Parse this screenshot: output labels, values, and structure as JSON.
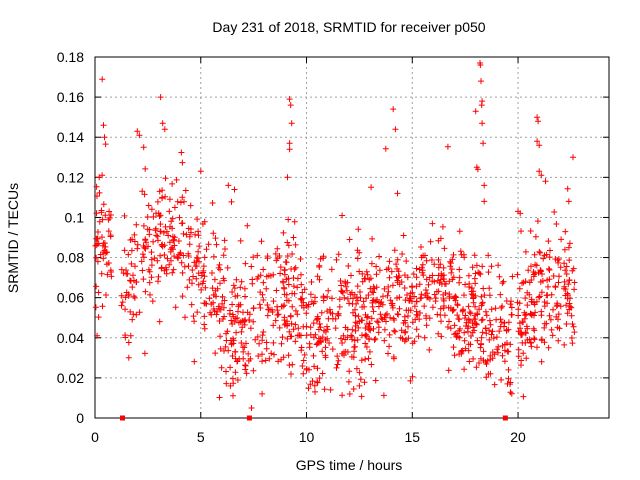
{
  "chart_data": {
    "type": "scatter",
    "title": "Day 231 of 2018, SRMTID for receiver p050",
    "xlabel": "GPS time / hours",
    "ylabel": "SRMTID / TECUs",
    "xlim": [
      0,
      24.3
    ],
    "ylim": [
      0,
      0.18
    ],
    "grid": true,
    "marker": "+",
    "color": "#ff0000",
    "x_ticks": [
      0,
      5,
      10,
      15,
      20
    ],
    "x_tick_labels": [
      "0",
      "5",
      "10",
      "15",
      "20"
    ],
    "y_ticks": [
      0,
      0.02,
      0.04,
      0.06,
      0.08,
      0.1,
      0.12,
      0.14,
      0.16,
      0.18
    ],
    "y_tick_labels": [
      "0",
      "0.02",
      "0.04",
      "0.06",
      "0.08",
      "0.1",
      "0.12",
      "0.14",
      "0.16",
      "0.18"
    ],
    "gap_markers_x": [
      1.3,
      7.3,
      19.4
    ],
    "trend": [
      {
        "x": 0.0,
        "y": 0.08
      },
      {
        "x": 0.3,
        "y": 0.095
      },
      {
        "x": 0.6,
        "y": 0.085
      },
      {
        "x": 1.4,
        "y": 0.06
      },
      {
        "x": 2.0,
        "y": 0.075
      },
      {
        "x": 2.5,
        "y": 0.085
      },
      {
        "x": 3.0,
        "y": 0.09
      },
      {
        "x": 3.5,
        "y": 0.09
      },
      {
        "x": 4.0,
        "y": 0.085
      },
      {
        "x": 4.5,
        "y": 0.08
      },
      {
        "x": 5.0,
        "y": 0.07
      },
      {
        "x": 5.5,
        "y": 0.062
      },
      {
        "x": 6.0,
        "y": 0.052
      },
      {
        "x": 6.5,
        "y": 0.045
      },
      {
        "x": 7.0,
        "y": 0.042
      },
      {
        "x": 7.5,
        "y": 0.05
      },
      {
        "x": 8.0,
        "y": 0.048
      },
      {
        "x": 8.5,
        "y": 0.055
      },
      {
        "x": 9.0,
        "y": 0.06
      },
      {
        "x": 9.5,
        "y": 0.055
      },
      {
        "x": 10.0,
        "y": 0.045
      },
      {
        "x": 10.5,
        "y": 0.042
      },
      {
        "x": 11.0,
        "y": 0.045
      },
      {
        "x": 11.5,
        "y": 0.048
      },
      {
        "x": 12.0,
        "y": 0.046
      },
      {
        "x": 12.5,
        "y": 0.048
      },
      {
        "x": 13.0,
        "y": 0.052
      },
      {
        "x": 13.5,
        "y": 0.055
      },
      {
        "x": 14.0,
        "y": 0.058
      },
      {
        "x": 14.5,
        "y": 0.055
      },
      {
        "x": 15.0,
        "y": 0.052
      },
      {
        "x": 15.5,
        "y": 0.062
      },
      {
        "x": 16.0,
        "y": 0.066
      },
      {
        "x": 16.5,
        "y": 0.064
      },
      {
        "x": 17.0,
        "y": 0.058
      },
      {
        "x": 17.5,
        "y": 0.052
      },
      {
        "x": 18.0,
        "y": 0.05
      },
      {
        "x": 18.5,
        "y": 0.048
      },
      {
        "x": 19.0,
        "y": 0.045
      },
      {
        "x": 19.5,
        "y": 0.042
      },
      {
        "x": 20.0,
        "y": 0.05
      },
      {
        "x": 20.5,
        "y": 0.058
      },
      {
        "x": 21.0,
        "y": 0.062
      },
      {
        "x": 21.5,
        "y": 0.06
      },
      {
        "x": 22.0,
        "y": 0.062
      },
      {
        "x": 22.6,
        "y": 0.06
      }
    ],
    "gaps": [
      [
        0.85,
        1.25
      ],
      [
        19.75,
        19.95
      ]
    ],
    "notable_points": [
      {
        "x": 0.4,
        "y": 0.146
      },
      {
        "x": 0.45,
        "y": 0.14
      },
      {
        "x": 0.2,
        "y": 0.12
      },
      {
        "x": 0.1,
        "y": 0.041
      },
      {
        "x": 2.0,
        "y": 0.143
      },
      {
        "x": 2.1,
        "y": 0.141
      },
      {
        "x": 2.3,
        "y": 0.135
      },
      {
        "x": 1.6,
        "y": 0.03
      },
      {
        "x": 3.1,
        "y": 0.16
      },
      {
        "x": 3.2,
        "y": 0.147
      },
      {
        "x": 3.3,
        "y": 0.144
      },
      {
        "x": 5.0,
        "y": 0.123
      },
      {
        "x": 6.3,
        "y": 0.116
      },
      {
        "x": 6.4,
        "y": 0.016
      },
      {
        "x": 7.4,
        "y": 0.005
      },
      {
        "x": 7.9,
        "y": 0.012
      },
      {
        "x": 9.2,
        "y": 0.159
      },
      {
        "x": 9.25,
        "y": 0.156
      },
      {
        "x": 9.3,
        "y": 0.147
      },
      {
        "x": 9.2,
        "y": 0.137
      },
      {
        "x": 9.1,
        "y": 0.12
      },
      {
        "x": 9.2,
        "y": 0.134
      },
      {
        "x": 10.4,
        "y": 0.013
      },
      {
        "x": 10.5,
        "y": 0.018
      },
      {
        "x": 10.0,
        "y": 0.024
      },
      {
        "x": 12.5,
        "y": 0.016
      },
      {
        "x": 14.1,
        "y": 0.154
      },
      {
        "x": 14.2,
        "y": 0.144
      },
      {
        "x": 14.3,
        "y": 0.112
      },
      {
        "x": 18.0,
        "y": 0.153
      },
      {
        "x": 18.05,
        "y": 0.125
      },
      {
        "x": 18.1,
        "y": 0.124
      },
      {
        "x": 18.2,
        "y": 0.177
      },
      {
        "x": 18.22,
        "y": 0.176
      },
      {
        "x": 18.25,
        "y": 0.168
      },
      {
        "x": 18.3,
        "y": 0.158
      },
      {
        "x": 18.28,
        "y": 0.156
      },
      {
        "x": 18.3,
        "y": 0.147
      },
      {
        "x": 18.35,
        "y": 0.137
      },
      {
        "x": 18.4,
        "y": 0.116
      },
      {
        "x": 18.4,
        "y": 0.108
      },
      {
        "x": 19.2,
        "y": 0.019
      },
      {
        "x": 19.5,
        "y": 0.017
      },
      {
        "x": 20.0,
        "y": 0.103
      },
      {
        "x": 20.1,
        "y": 0.102
      },
      {
        "x": 20.9,
        "y": 0.15
      },
      {
        "x": 20.95,
        "y": 0.148
      },
      {
        "x": 20.9,
        "y": 0.138
      },
      {
        "x": 21.0,
        "y": 0.136
      },
      {
        "x": 21.0,
        "y": 0.123
      },
      {
        "x": 21.1,
        "y": 0.121
      },
      {
        "x": 22.6,
        "y": 0.13
      },
      {
        "x": 22.4,
        "y": 0.108
      },
      {
        "x": 21.3,
        "y": 0.118
      }
    ],
    "scatter_count": 1400,
    "spread": 0.016,
    "seed": 231
  }
}
